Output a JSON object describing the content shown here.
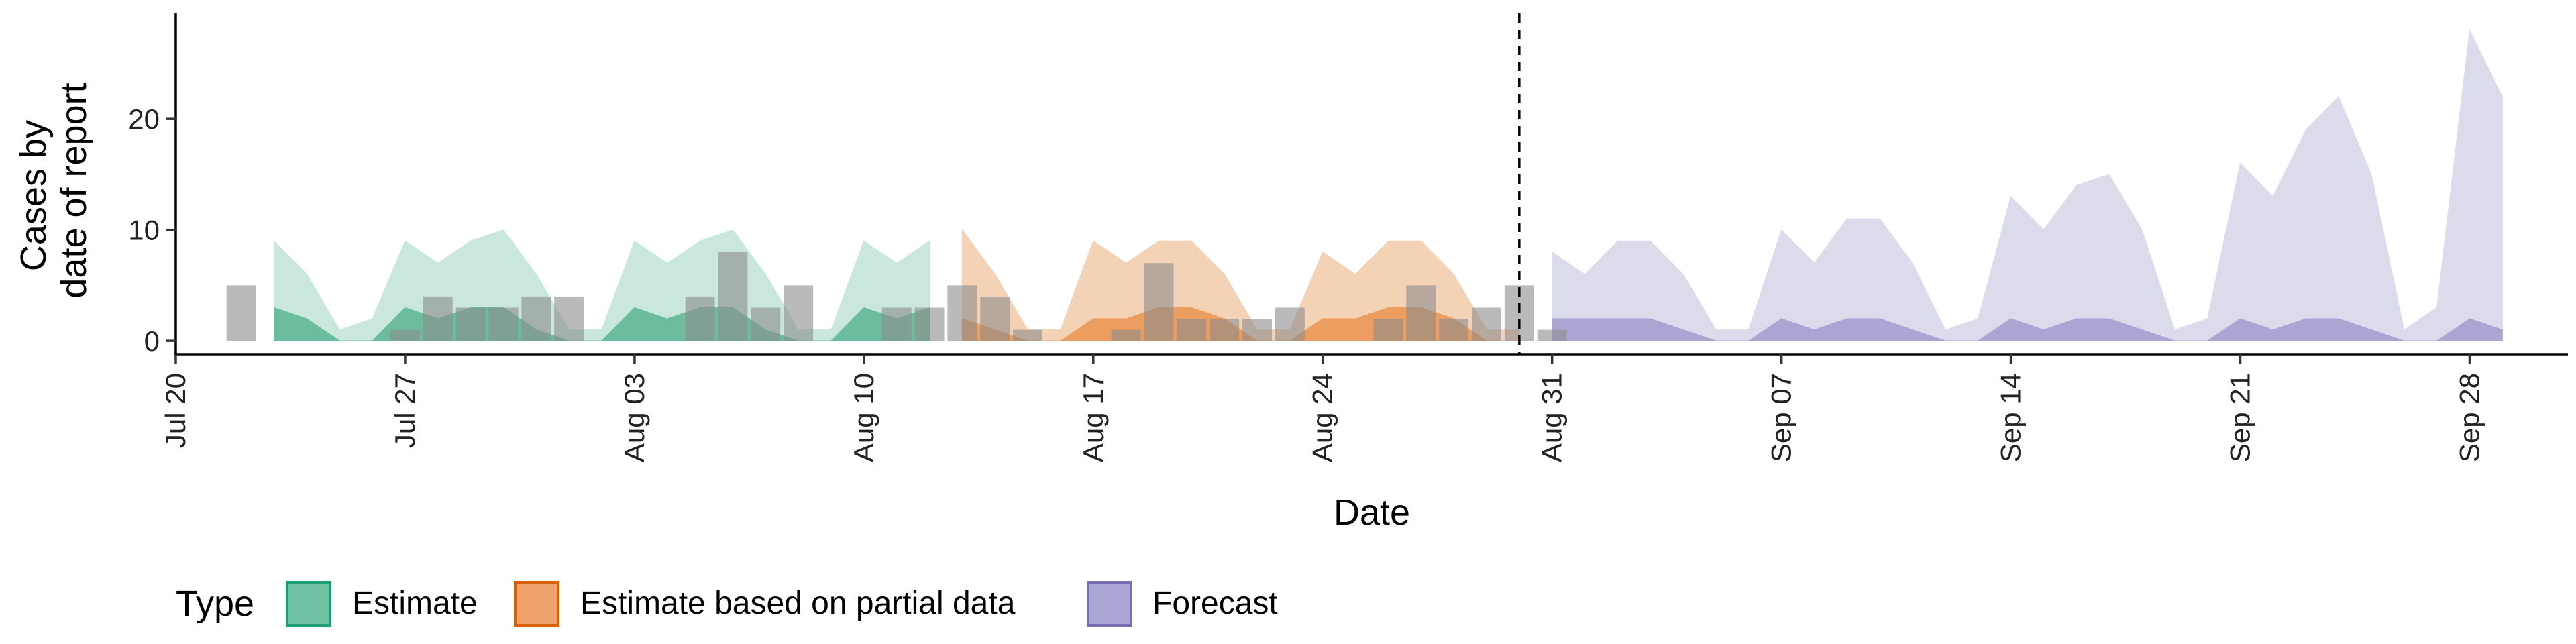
{
  "chart_data": {
    "type": "area",
    "xlabel": "Date",
    "ylabel_lines": [
      "Cases by",
      "date of report"
    ],
    "xlim": [
      "2020-07-20",
      "2020-10-01"
    ],
    "ylim": [
      -1.2,
      29.5
    ],
    "y_ticks": [
      0,
      10,
      20
    ],
    "x_ticks": [
      {
        "date": "2020-07-20",
        "label": "Jul 20"
      },
      {
        "date": "2020-07-27",
        "label": "Jul 27"
      },
      {
        "date": "2020-08-03",
        "label": "Aug 03"
      },
      {
        "date": "2020-08-10",
        "label": "Aug 10"
      },
      {
        "date": "2020-08-17",
        "label": "Aug 17"
      },
      {
        "date": "2020-08-24",
        "label": "Aug 24"
      },
      {
        "date": "2020-08-31",
        "label": "Aug 31"
      },
      {
        "date": "2020-09-07",
        "label": "Sep 07"
      },
      {
        "date": "2020-09-14",
        "label": "Sep 14"
      },
      {
        "date": "2020-09-21",
        "label": "Sep 21"
      },
      {
        "date": "2020-09-28",
        "label": "Sep 28"
      }
    ],
    "vline_date": "2020-08-30",
    "grid": false,
    "legend_position": "bottom",
    "legend": {
      "title": "Type",
      "entries": [
        {
          "label": "Estimate",
          "fill": "#71c1a5",
          "stroke": "#1b9e77"
        },
        {
          "label": "Estimate based on partial data",
          "fill": "#eda36b",
          "stroke": "#d95f02"
        },
        {
          "label": "Forecast",
          "fill": "#aba6d3",
          "stroke": "#7570b3"
        }
      ]
    },
    "series": [
      {
        "type": "Estimate",
        "start": "2020-07-23",
        "upper90": [
          9,
          6,
          1,
          2,
          9,
          7,
          9,
          10,
          6,
          1,
          1,
          9,
          7,
          9,
          10,
          6,
          1,
          1,
          9,
          7,
          9
        ],
        "upper50": [
          3,
          2,
          0,
          0,
          3,
          2,
          3,
          3,
          1,
          0,
          0,
          3,
          2,
          3,
          3,
          1,
          0,
          0,
          3,
          2,
          3
        ],
        "light_fill": "#c9e7dc",
        "dark_fill": "#6bbd9e"
      },
      {
        "type": "Estimate based on partial data",
        "start": "2020-08-13",
        "upper90": [
          10,
          6,
          1,
          1,
          9,
          7,
          9,
          9,
          6,
          1,
          1,
          8,
          6,
          9,
          9,
          6,
          1,
          1
        ],
        "upper50": [
          2,
          1,
          0,
          0,
          2,
          2,
          3,
          3,
          2,
          0,
          0,
          2,
          2,
          3,
          3,
          2,
          0,
          0
        ],
        "light_fill": "#f4d2b6",
        "dark_fill": "#ec9d60"
      },
      {
        "type": "Forecast",
        "start": "2020-08-31",
        "upper90": [
          8,
          6,
          9,
          9,
          6,
          1,
          1,
          10,
          7,
          11,
          11,
          7,
          1,
          2,
          13,
          10,
          14,
          15,
          10,
          1,
          2,
          16,
          13,
          19,
          22,
          15,
          1,
          3,
          28,
          22
        ],
        "upper50": [
          2,
          2,
          2,
          2,
          1,
          0,
          0,
          2,
          1,
          2,
          2,
          1,
          0,
          0,
          2,
          1,
          2,
          2,
          1,
          0,
          0,
          2,
          1,
          2,
          2,
          1,
          0,
          0,
          2,
          1
        ],
        "light_fill": "#dcdbec",
        "dark_fill": "#aaa5d2"
      }
    ],
    "reported_cases": {
      "start": "2020-07-22",
      "values": [
        5,
        0,
        0,
        0,
        0,
        1,
        4,
        3,
        3,
        4,
        4,
        0,
        0,
        0,
        4,
        8,
        3,
        5,
        0,
        0,
        3,
        3,
        5,
        4,
        1,
        0,
        0,
        1,
        7,
        2,
        2,
        2,
        3,
        0,
        0,
        2,
        5,
        2,
        3,
        5,
        1
      ],
      "fill": "#8c8c8c",
      "opacity": 0.6
    }
  }
}
